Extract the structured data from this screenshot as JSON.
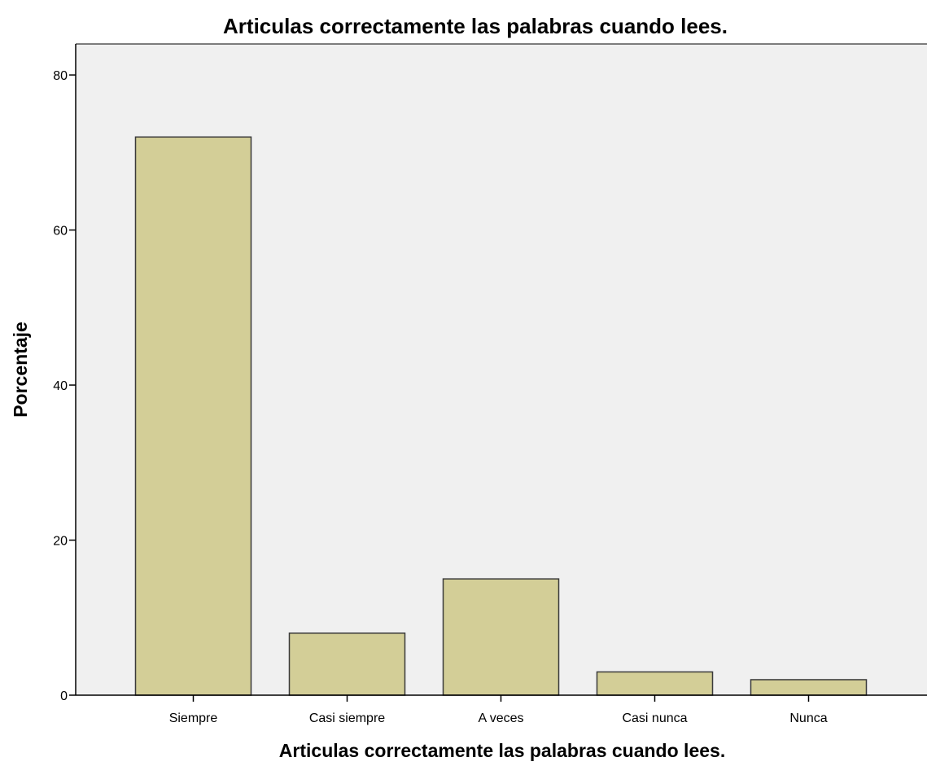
{
  "chart_data": {
    "type": "bar",
    "title": "Articulas correctamente las palabras cuando lees.",
    "xlabel": "Articulas correctamente las palabras cuando lees.",
    "ylabel": "Porcentaje",
    "categories": [
      "Siempre",
      "Casi siempre",
      "A veces",
      "Casi nunca",
      "Nunca"
    ],
    "values": [
      72,
      8,
      15,
      3,
      2
    ],
    "ylim": [
      0,
      84
    ],
    "yticks": [
      0,
      20,
      40,
      60,
      80
    ],
    "grid": false,
    "legend": "none"
  },
  "colors": {
    "plot_background": "#f0f0f0",
    "bar_fill": "#d3ce97",
    "bar_stroke": "#3a3a3a",
    "axis": "#000000"
  }
}
